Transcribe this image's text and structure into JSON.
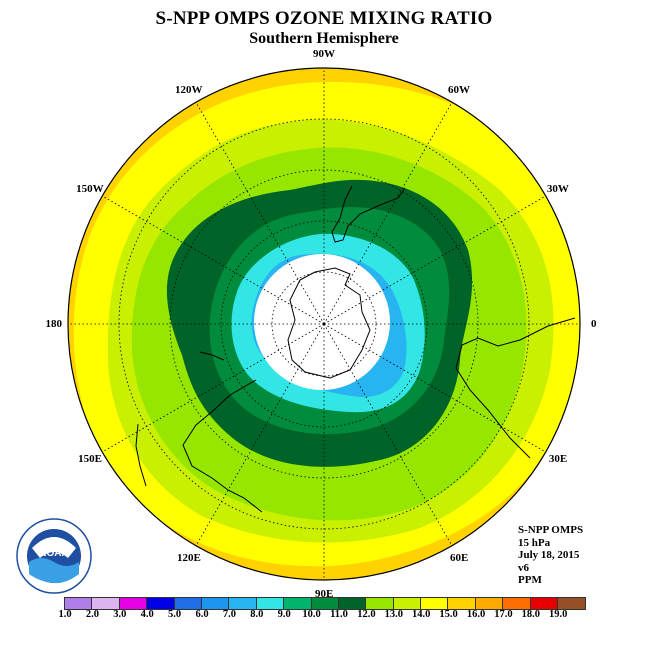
{
  "title": "S-NPP OMPS OZONE MIXING RATIO",
  "subtitle": "Southern Hemisphere",
  "longitude_labels": [
    {
      "text": "90W",
      "lon": -90
    },
    {
      "text": "60W",
      "lon": -60
    },
    {
      "text": "30W",
      "lon": -30
    },
    {
      "text": "0",
      "lon": 0
    },
    {
      "text": "30E",
      "lon": 30
    },
    {
      "text": "60E",
      "lon": 60
    },
    {
      "text": "90E",
      "lon": 90
    },
    {
      "text": "120E",
      "lon": 120
    },
    {
      "text": "150E",
      "lon": 150
    },
    {
      "text": "180",
      "lon": 180
    },
    {
      "text": "150W",
      "lon": -150
    },
    {
      "text": "120W",
      "lon": -120
    }
  ],
  "info": {
    "instrument": "S-NPP OMPS",
    "level": "15 hPa",
    "date": "July 18, 2015",
    "version": "v6",
    "units": "PPM"
  },
  "logo_text": "NOAA",
  "colorbar": {
    "ticks": [
      "1.0",
      "2.0",
      "3.0",
      "4.0",
      "5.0",
      "6.0",
      "7.0",
      "8.0",
      "9.0",
      "10.0",
      "11.0",
      "12.0",
      "13.0",
      "14.0",
      "15.0",
      "16.0",
      "17.0",
      "18.0",
      "19.0"
    ],
    "colors": [
      "#b07ee8",
      "#dcb4f0",
      "#e600e6",
      "#0000e6",
      "#1e6ee6",
      "#1e96f0",
      "#28b4f0",
      "#32e6e6",
      "#00b46e",
      "#008c3c",
      "#006428",
      "#96e600",
      "#c8f000",
      "#ffff00",
      "#ffd200",
      "#ffaa00",
      "#ff6e00",
      "#e60000",
      "#965028"
    ]
  }
}
